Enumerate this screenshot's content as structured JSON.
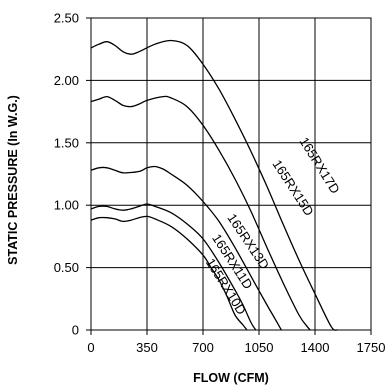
{
  "chart_data": {
    "type": "line",
    "xlabel": "FLOW (CFM)",
    "ylabel": "STATIC PRESSURE (In W.G.)",
    "xlim": [
      0,
      1750
    ],
    "ylim": [
      0,
      2.5
    ],
    "x_ticks": [
      0,
      350,
      700,
      1050,
      1400,
      1750
    ],
    "x_tick_labels": [
      "0",
      "350",
      "700",
      "1050",
      "1400",
      "1750"
    ],
    "y_ticks": [
      0,
      0.5,
      1.0,
      1.5,
      2.0,
      2.5
    ],
    "y_tick_labels": [
      "0",
      "0.50",
      "1.00",
      "1.50",
      "2.00",
      "2.50"
    ],
    "grid": true,
    "series": [
      {
        "name": "165RX17D",
        "points": [
          [
            0,
            2.26
          ],
          [
            50,
            2.29
          ],
          [
            100,
            2.31
          ],
          [
            150,
            2.28
          ],
          [
            200,
            2.23
          ],
          [
            250,
            2.21
          ],
          [
            300,
            2.23
          ],
          [
            400,
            2.29
          ],
          [
            500,
            2.32
          ],
          [
            600,
            2.28
          ],
          [
            700,
            2.13
          ],
          [
            800,
            1.93
          ],
          [
            900,
            1.69
          ],
          [
            1000,
            1.43
          ],
          [
            1100,
            1.15
          ],
          [
            1200,
            0.85
          ],
          [
            1300,
            0.56
          ],
          [
            1400,
            0.29
          ],
          [
            1500,
            0.03
          ],
          [
            1540,
            0
          ]
        ]
      },
      {
        "name": "165RX15D",
        "points": [
          [
            0,
            1.83
          ],
          [
            50,
            1.85
          ],
          [
            100,
            1.87
          ],
          [
            150,
            1.84
          ],
          [
            200,
            1.8
          ],
          [
            250,
            1.79
          ],
          [
            300,
            1.81
          ],
          [
            350,
            1.84
          ],
          [
            450,
            1.87
          ],
          [
            500,
            1.86
          ],
          [
            600,
            1.79
          ],
          [
            700,
            1.64
          ],
          [
            800,
            1.44
          ],
          [
            900,
            1.21
          ],
          [
            1000,
            0.95
          ],
          [
            1100,
            0.66
          ],
          [
            1200,
            0.38
          ],
          [
            1300,
            0.12
          ],
          [
            1350,
            0.03
          ],
          [
            1370,
            0
          ]
        ]
      },
      {
        "name": "165RX13D",
        "points": [
          [
            0,
            1.28
          ],
          [
            50,
            1.3
          ],
          [
            100,
            1.3
          ],
          [
            150,
            1.28
          ],
          [
            200,
            1.26
          ],
          [
            300,
            1.27
          ],
          [
            350,
            1.3
          ],
          [
            400,
            1.31
          ],
          [
            450,
            1.29
          ],
          [
            500,
            1.25
          ],
          [
            600,
            1.16
          ],
          [
            700,
            1.03
          ],
          [
            800,
            0.87
          ],
          [
            900,
            0.66
          ],
          [
            1000,
            0.43
          ],
          [
            1100,
            0.2
          ],
          [
            1150,
            0.09
          ],
          [
            1190,
            0
          ]
        ]
      },
      {
        "name": "165RX11D",
        "points": [
          [
            0,
            0.97
          ],
          [
            50,
            0.99
          ],
          [
            100,
            0.99
          ],
          [
            150,
            0.97
          ],
          [
            200,
            0.96
          ],
          [
            250,
            0.97
          ],
          [
            300,
            0.99
          ],
          [
            350,
            1.01
          ],
          [
            400,
            0.99
          ],
          [
            500,
            0.94
          ],
          [
            600,
            0.85
          ],
          [
            700,
            0.73
          ],
          [
            800,
            0.54
          ],
          [
            900,
            0.32
          ],
          [
            950,
            0.2
          ],
          [
            1000,
            0.06
          ],
          [
            1030,
            0
          ]
        ]
      },
      {
        "name": "165RX10D",
        "points": [
          [
            0,
            0.88
          ],
          [
            50,
            0.9
          ],
          [
            100,
            0.9
          ],
          [
            150,
            0.89
          ],
          [
            200,
            0.87
          ],
          [
            250,
            0.88
          ],
          [
            300,
            0.9
          ],
          [
            350,
            0.91
          ],
          [
            400,
            0.89
          ],
          [
            500,
            0.83
          ],
          [
            600,
            0.73
          ],
          [
            700,
            0.6
          ],
          [
            750,
            0.5
          ],
          [
            800,
            0.4
          ],
          [
            850,
            0.27
          ],
          [
            900,
            0.12
          ],
          [
            950,
            0.04
          ],
          [
            975,
            0
          ]
        ]
      }
    ]
  }
}
